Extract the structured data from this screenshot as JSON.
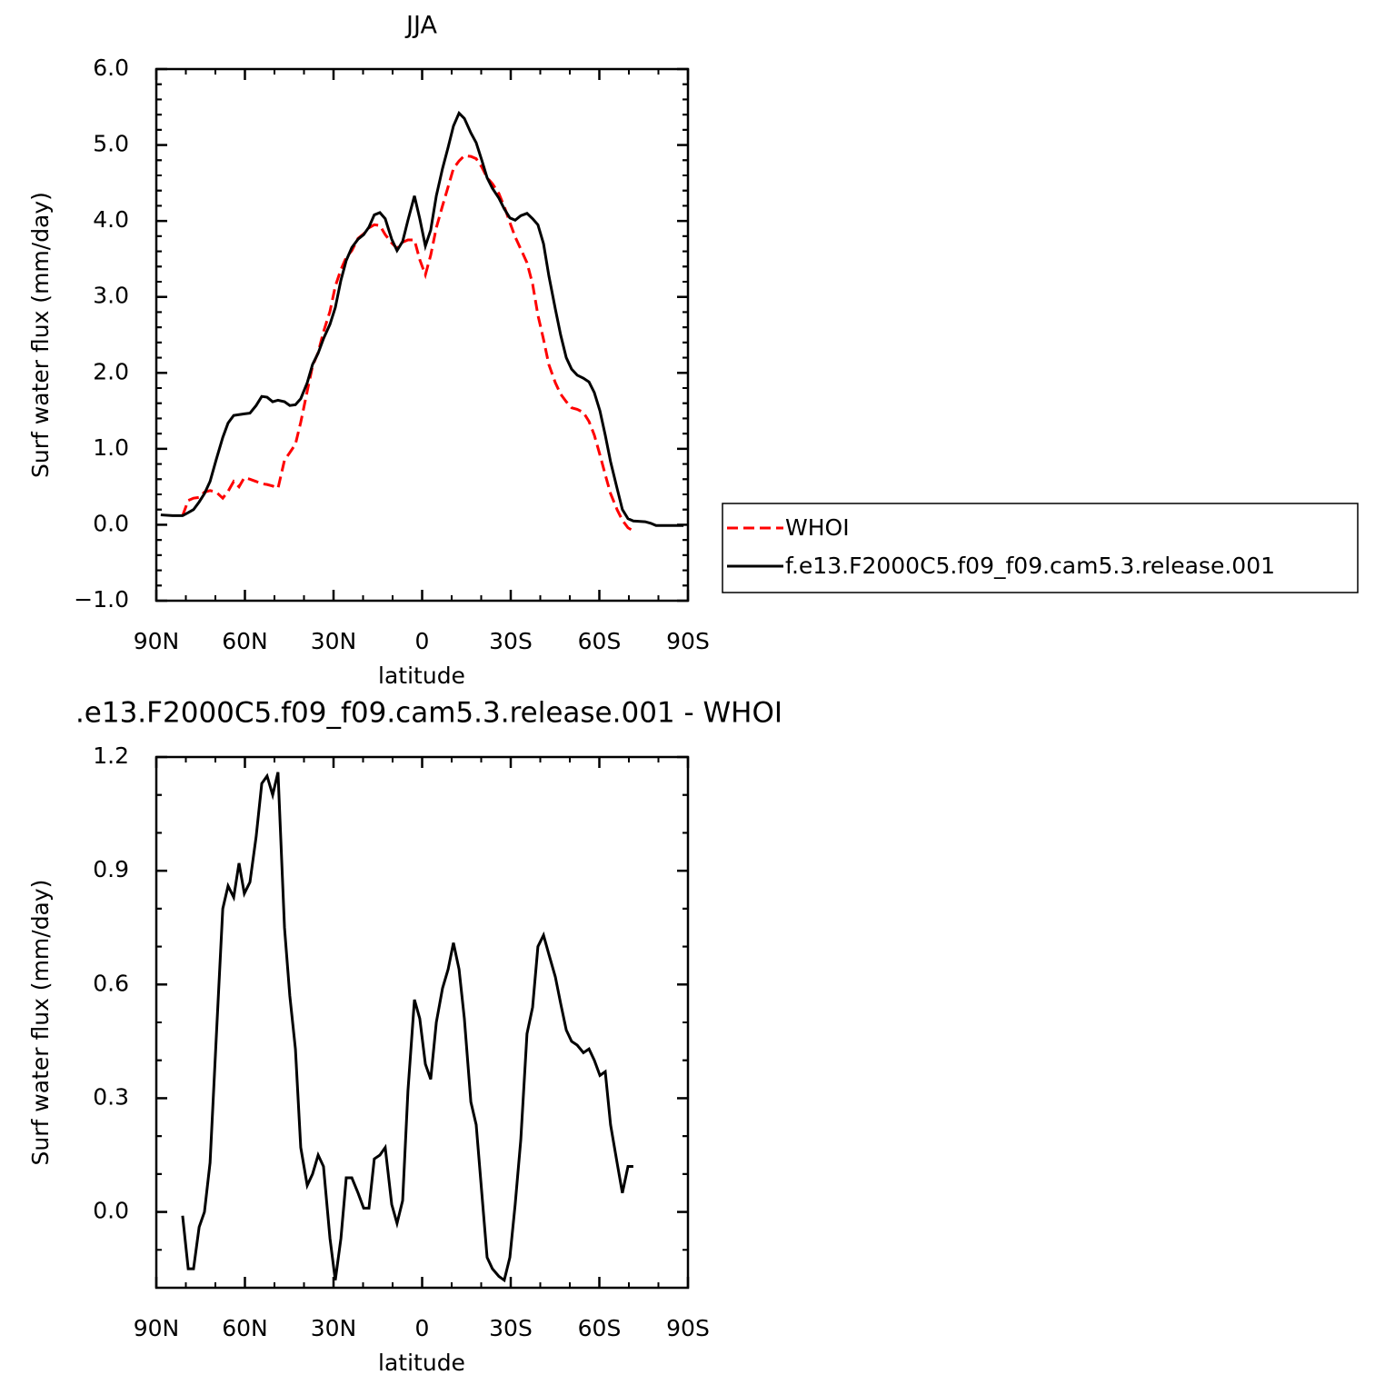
{
  "chart_data": [
    {
      "type": "line",
      "title": "JJA",
      "xlabel": "latitude",
      "ylabel": "Surf water flux (mm/day)",
      "x": [
        88.5,
        84.5,
        81.1,
        79.2,
        77.4,
        75.5,
        73.7,
        71.8,
        69.7,
        67.5,
        65.7,
        63.8,
        62.0,
        60.2,
        58.3,
        56.2,
        54.3,
        52.5,
        50.6,
        48.8,
        46.6,
        44.8,
        42.9,
        41.1,
        38.9,
        37.1,
        35.2,
        33.4,
        31.2,
        29.4,
        27.5,
        25.7,
        23.8,
        21.7,
        19.8,
        18.0,
        16.2,
        14.3,
        12.5,
        10.3,
        8.5,
        6.6,
        4.8,
        2.6,
        0.8,
        -1.1,
        -2.9,
        -4.8,
        -6.9,
        -8.8,
        -10.6,
        -12.5,
        -14.3,
        -16.5,
        -18.3,
        -20.2,
        -22.0,
        -23.8,
        -26.0,
        -27.8,
        -29.7,
        -31.5,
        -33.4,
        -35.5,
        -37.4,
        -39.2,
        -41.1,
        -42.9,
        -45.1,
        -46.9,
        -48.8,
        -50.6,
        -52.5,
        -54.6,
        -56.5,
        -58.3,
        -60.2,
        -62.0,
        -63.8,
        -66.0,
        -67.8,
        -69.7,
        -71.5,
        -75.5,
        -77.4,
        -79.2,
        -84.8,
        -88.5
      ],
      "series": [
        {
          "name": "WHOI",
          "color": "#ff0000",
          "line_style": "dashed",
          "values": [
            null,
            null,
            0.12,
            0.32,
            0.35,
            0.36,
            0.43,
            0.45,
            0.43,
            0.35,
            0.44,
            0.57,
            0.5,
            0.62,
            0.6,
            0.57,
            0.54,
            0.53,
            0.51,
            0.48,
            0.85,
            0.95,
            1.06,
            1.35,
            1.76,
            2.09,
            2.27,
            2.54,
            2.81,
            3.14,
            3.36,
            3.52,
            3.61,
            3.77,
            3.83,
            3.91,
            3.95,
            3.94,
            3.82,
            3.71,
            3.64,
            3.72,
            3.75,
            3.75,
            3.49,
            3.29,
            3.55,
            3.91,
            4.2,
            4.45,
            4.69,
            4.79,
            4.86,
            4.85,
            4.82,
            4.71,
            4.57,
            4.49,
            4.36,
            4.19,
            3.98,
            3.79,
            3.63,
            3.45,
            3.17,
            2.76,
            2.44,
            2.11,
            1.87,
            1.72,
            1.62,
            1.54,
            1.52,
            1.48,
            1.36,
            1.18,
            0.92,
            0.66,
            0.41,
            0.2,
            0.06,
            -0.04,
            -0.08,
            null,
            null,
            null,
            null,
            null
          ]
        },
        {
          "name": "f.e13.F2000C5.f09_f09.cam5.3.release.001",
          "color": "#000000",
          "line_style": "solid",
          "values": [
            0.13,
            0.12,
            0.12,
            0.16,
            0.2,
            0.3,
            0.41,
            0.57,
            0.86,
            1.15,
            1.34,
            1.44,
            1.45,
            1.46,
            1.47,
            1.57,
            1.69,
            1.68,
            1.62,
            1.64,
            1.62,
            1.57,
            1.58,
            1.66,
            1.87,
            2.11,
            2.26,
            2.45,
            2.64,
            2.86,
            3.22,
            3.48,
            3.65,
            3.76,
            3.82,
            3.92,
            4.08,
            4.11,
            4.03,
            3.76,
            3.61,
            3.73,
            4.01,
            4.33,
            4.03,
            3.67,
            3.88,
            4.33,
            4.69,
            4.97,
            5.25,
            5.42,
            5.35,
            5.16,
            5.03,
            4.8,
            4.57,
            4.43,
            4.3,
            4.16,
            4.04,
            4.01,
            4.07,
            4.1,
            4.03,
            3.95,
            3.7,
            3.28,
            2.84,
            2.5,
            2.2,
            2.05,
            1.97,
            1.93,
            1.88,
            1.74,
            1.5,
            1.18,
            0.83,
            0.48,
            0.2,
            0.08,
            0.05,
            0.04,
            0.02,
            -0.01,
            -0.01,
            -0.01
          ]
        }
      ],
      "xlim": [
        90,
        -90
      ],
      "xticks": [
        {
          "value": 90,
          "label": "90N"
        },
        {
          "value": 60,
          "label": "60N"
        },
        {
          "value": 30,
          "label": "30N"
        },
        0,
        {
          "value": -30,
          "label": "30S"
        },
        {
          "value": -60,
          "label": "60S"
        },
        {
          "value": -90,
          "label": "90S"
        }
      ],
      "ylim": [
        -1,
        6
      ],
      "yticks": [
        {
          "value": -1,
          "label": "−1.0"
        },
        {
          "value": 0,
          "label": "0.0"
        },
        {
          "value": 1,
          "label": "1.0"
        },
        {
          "value": 2,
          "label": "2.0"
        },
        {
          "value": 3,
          "label": "3.0"
        },
        {
          "value": 4,
          "label": "4.0"
        },
        {
          "value": 5,
          "label": "5.0"
        },
        {
          "value": 6,
          "label": "6.0"
        }
      ],
      "legend": "right"
    },
    {
      "type": "line",
      "title": ".e13.F2000C5.f09_f09.cam5.3.release.001  -  WHOI",
      "xlabel": "latitude",
      "ylabel": "Surf water flux (mm/day)",
      "x": [
        81.1,
        79.2,
        77.4,
        75.5,
        73.7,
        71.8,
        69.7,
        67.5,
        65.7,
        63.8,
        62.0,
        60.2,
        58.3,
        56.2,
        54.3,
        52.5,
        50.6,
        48.8,
        46.6,
        44.8,
        42.9,
        41.1,
        38.9,
        37.1,
        35.2,
        33.4,
        31.2,
        29.4,
        27.5,
        25.7,
        23.8,
        21.7,
        19.8,
        18.0,
        16.2,
        14.3,
        12.5,
        10.3,
        8.5,
        6.6,
        4.8,
        2.6,
        0.8,
        -1.1,
        -2.9,
        -4.8,
        -6.9,
        -8.8,
        -10.6,
        -12.5,
        -14.3,
        -16.5,
        -18.3,
        -20.2,
        -22.0,
        -23.8,
        -26.0,
        -27.8,
        -29.7,
        -31.5,
        -33.4,
        -35.5,
        -37.4,
        -39.2,
        -41.1,
        -42.9,
        -45.1,
        -46.9,
        -48.8,
        -50.6,
        -52.5,
        -54.6,
        -56.5,
        -58.3,
        -60.2,
        -62.0,
        -63.8,
        -66.0,
        -67.8,
        -69.7,
        -71.5
      ],
      "series": [
        {
          "color": "#000000",
          "line_style": "solid",
          "values": [
            -0.01,
            -0.15,
            -0.15,
            -0.04,
            0.0,
            0.13,
            0.46,
            0.8,
            0.86,
            0.83,
            0.92,
            0.84,
            0.87,
            0.99,
            1.13,
            1.15,
            1.1,
            1.16,
            0.75,
            0.57,
            0.43,
            0.17,
            0.07,
            0.1,
            0.15,
            0.12,
            -0.07,
            -0.18,
            -0.07,
            0.09,
            0.09,
            0.05,
            0.01,
            0.01,
            0.14,
            0.15,
            0.17,
            0.02,
            -0.03,
            0.03,
            0.32,
            0.56,
            0.51,
            0.39,
            0.35,
            0.5,
            0.59,
            0.64,
            0.71,
            0.64,
            0.51,
            0.29,
            0.23,
            0.05,
            -0.12,
            -0.15,
            -0.17,
            -0.18,
            -0.12,
            0.02,
            0.19,
            0.47,
            0.54,
            0.7,
            0.73,
            0.68,
            0.62,
            0.55,
            0.48,
            0.45,
            0.44,
            0.42,
            0.43,
            0.4,
            0.36,
            0.37,
            0.23,
            0.13,
            0.05,
            0.12,
            0.12
          ]
        }
      ],
      "xlim": [
        90,
        -90
      ],
      "xticks": [
        {
          "value": 90,
          "label": "90N"
        },
        {
          "value": 60,
          "label": "60N"
        },
        {
          "value": 30,
          "label": "30N"
        },
        0,
        {
          "value": -30,
          "label": "30S"
        },
        {
          "value": -60,
          "label": "60S"
        },
        {
          "value": -90,
          "label": "90S"
        }
      ],
      "ylim": [
        -0.2,
        1.2
      ],
      "yticks": [
        {
          "value": 0,
          "label": "0.0"
        },
        0.3,
        0.6,
        0.9,
        1.2
      ]
    }
  ]
}
